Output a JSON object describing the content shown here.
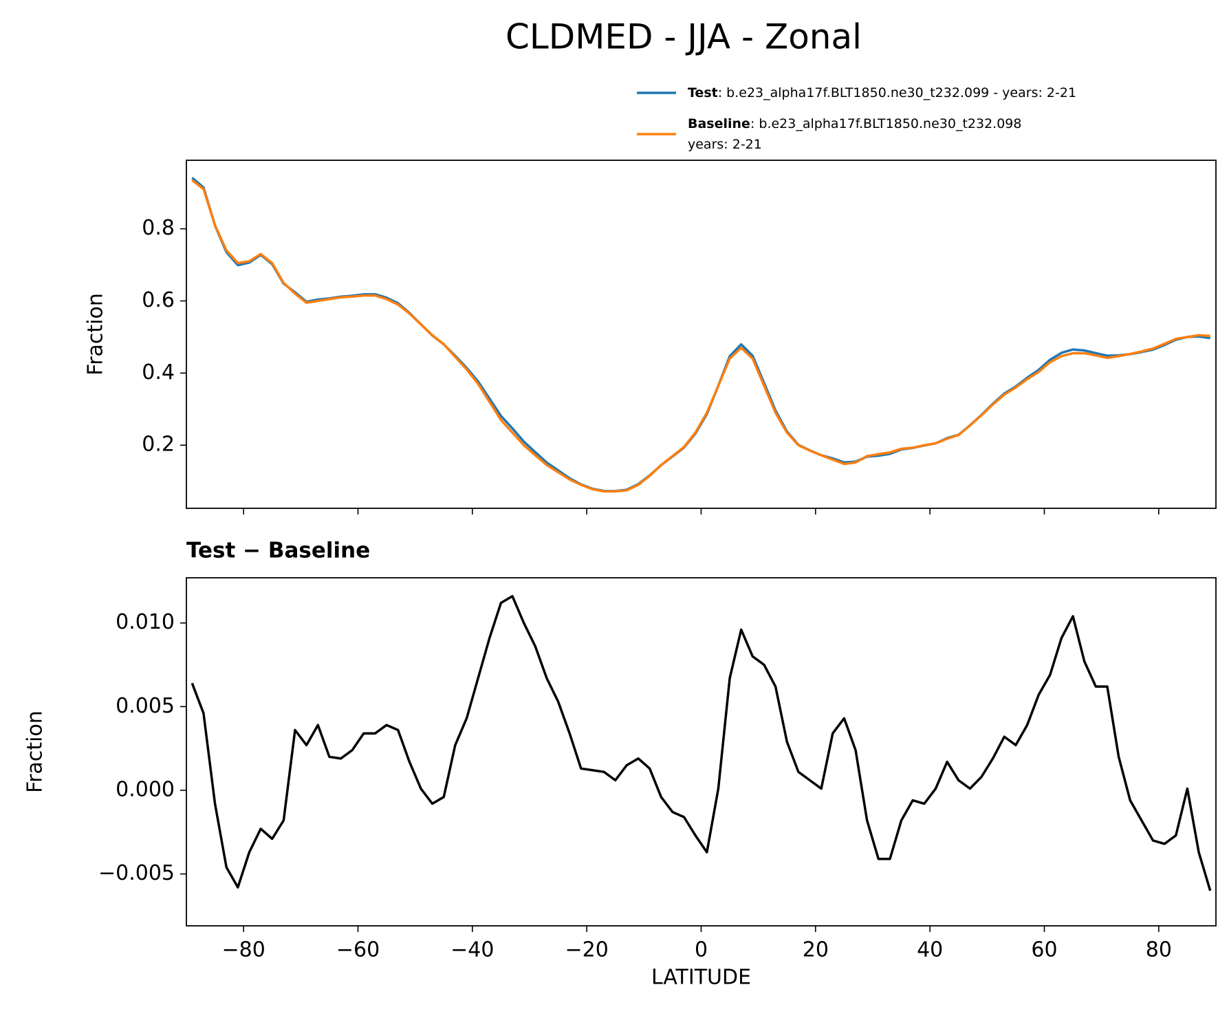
{
  "chart_data": [
    {
      "type": "line",
      "title": "CLDMED - JJA - Zonal",
      "ylabel": "Fraction",
      "x": [
        -89,
        -87,
        -85,
        -83,
        -81,
        -79,
        -77,
        -75,
        -73,
        -71,
        -69,
        -67,
        -65,
        -63,
        -61,
        -59,
        -57,
        -55,
        -53,
        -51,
        -49,
        -47,
        -45,
        -43,
        -41,
        -39,
        -37,
        -35,
        -33,
        -31,
        -29,
        -27,
        -25,
        -23,
        -21,
        -19,
        -17,
        -15,
        -13,
        -11,
        -9,
        -7,
        -5,
        -3,
        -1,
        1,
        3,
        5,
        7,
        9,
        11,
        13,
        15,
        17,
        19,
        21,
        23,
        25,
        27,
        29,
        31,
        33,
        35,
        37,
        39,
        41,
        43,
        45,
        47,
        49,
        51,
        53,
        55,
        57,
        59,
        61,
        63,
        65,
        67,
        69,
        71,
        73,
        75,
        77,
        79,
        81,
        83,
        85,
        87,
        89
      ],
      "series": [
        {
          "name": "Test",
          "case": [
            ": b.e23_alpha17f.BLT1850.ne30_t232.099 - years: 2-21"
          ],
          "color": "#1f77b4",
          "values": [
            0.9414,
            0.9146,
            0.8092,
            0.7354,
            0.6992,
            0.7063,
            0.7277,
            0.7021,
            0.6482,
            0.6236,
            0.5977,
            0.6039,
            0.607,
            0.6119,
            0.6144,
            0.6184,
            0.6184,
            0.6089,
            0.5936,
            0.5667,
            0.5351,
            0.5042,
            0.4796,
            0.4477,
            0.4143,
            0.3767,
            0.3291,
            0.2812,
            0.2466,
            0.21,
            0.1806,
            0.1517,
            0.1303,
            0.1084,
            0.0913,
            0.0792,
            0.0731,
            0.0726,
            0.0765,
            0.0919,
            0.1163,
            0.1446,
            0.1687,
            0.1934,
            0.2323,
            0.2863,
            0.3651,
            0.4467,
            0.4796,
            0.448,
            0.3725,
            0.2962,
            0.2379,
            0.2011,
            0.1856,
            0.1721,
            0.1634,
            0.1523,
            0.1544,
            0.1682,
            0.1709,
            0.1759,
            0.1882,
            0.1924,
            0.1992,
            0.2051,
            0.2197,
            0.2286,
            0.2551,
            0.2838,
            0.3149,
            0.3432,
            0.3627,
            0.3869,
            0.4087,
            0.4369,
            0.4561,
            0.4654,
            0.4627,
            0.4552,
            0.4482,
            0.449,
            0.4524,
            0.4582,
            0.465,
            0.4778,
            0.4923,
            0.5001,
            0.5013,
            0.497
          ]
        },
        {
          "name": "Baseline",
          "case": [
            ": b.e23_alpha17f.BLT1850.ne30_t232.098",
            "years: 2-21"
          ],
          "color": "#ff7f0e",
          "values": [
            0.935,
            0.91,
            0.81,
            0.74,
            0.705,
            0.71,
            0.73,
            0.705,
            0.65,
            0.62,
            0.595,
            0.6,
            0.605,
            0.61,
            0.612,
            0.615,
            0.615,
            0.605,
            0.59,
            0.565,
            0.535,
            0.505,
            0.48,
            0.445,
            0.41,
            0.37,
            0.32,
            0.27,
            0.235,
            0.2,
            0.172,
            0.145,
            0.125,
            0.105,
            0.09,
            0.078,
            0.072,
            0.072,
            0.075,
            0.09,
            0.115,
            0.145,
            0.17,
            0.195,
            0.235,
            0.29,
            0.365,
            0.44,
            0.47,
            0.44,
            0.365,
            0.29,
            0.235,
            0.2,
            0.185,
            0.172,
            0.16,
            0.148,
            0.152,
            0.17,
            0.175,
            0.18,
            0.19,
            0.193,
            0.2,
            0.205,
            0.218,
            0.228,
            0.255,
            0.283,
            0.313,
            0.34,
            0.36,
            0.383,
            0.403,
            0.43,
            0.447,
            0.455,
            0.455,
            0.449,
            0.442,
            0.447,
            0.453,
            0.46,
            0.468,
            0.481,
            0.495,
            0.5,
            0.505,
            0.503
          ]
        }
      ],
      "xlim": [
        -90,
        90
      ],
      "ylim": [
        0.025,
        0.99
      ],
      "xticks": [
        -80,
        -60,
        -40,
        -20,
        0,
        20,
        40,
        60,
        80
      ],
      "xtick_labels": false,
      "yticks": [
        0.2,
        0.4,
        0.6,
        0.8
      ]
    },
    {
      "type": "line",
      "subtitle": "Test − Baseline",
      "ylabel": "Fraction",
      "xlabel": "LATITUDE",
      "color": "#000000",
      "x": [
        -89,
        -87,
        -85,
        -83,
        -81,
        -79,
        -77,
        -75,
        -73,
        -71,
        -69,
        -67,
        -65,
        -63,
        -61,
        -59,
        -57,
        -55,
        -53,
        -51,
        -49,
        -47,
        -45,
        -43,
        -41,
        -39,
        -37,
        -35,
        -33,
        -31,
        -29,
        -27,
        -25,
        -23,
        -21,
        -19,
        -17,
        -15,
        -13,
        -11,
        -9,
        -7,
        -5,
        -3,
        -1,
        1,
        3,
        5,
        7,
        9,
        11,
        13,
        15,
        17,
        19,
        21,
        23,
        25,
        27,
        29,
        31,
        33,
        35,
        37,
        39,
        41,
        43,
        45,
        47,
        49,
        51,
        53,
        55,
        57,
        59,
        61,
        63,
        65,
        67,
        69,
        71,
        73,
        75,
        77,
        79,
        81,
        83,
        85,
        87,
        89
      ],
      "values": [
        0.0064,
        0.0046,
        -0.0008,
        -0.0046,
        -0.0058,
        -0.0037,
        -0.0023,
        -0.0029,
        -0.0018,
        0.0036,
        0.0027,
        0.0039,
        0.002,
        0.0019,
        0.0024,
        0.0034,
        0.0034,
        0.0039,
        0.0036,
        0.0017,
        0.0001,
        -0.0008,
        -0.0004,
        0.0027,
        0.0043,
        0.0067,
        0.0091,
        0.0112,
        0.0116,
        0.01,
        0.0086,
        0.0067,
        0.0053,
        0.0034,
        0.0013,
        0.0012,
        0.0011,
        0.0006,
        0.0015,
        0.0019,
        0.0013,
        -0.0004,
        -0.0013,
        -0.0016,
        -0.0027,
        -0.0037,
        0.0001,
        0.0067,
        0.0096,
        0.008,
        0.0075,
        0.0062,
        0.0029,
        0.0011,
        0.0006,
        0.0001,
        0.0034,
        0.0043,
        0.0024,
        -0.0018,
        -0.0041,
        -0.0041,
        -0.0018,
        -0.0006,
        -0.0008,
        0.0001,
        0.0017,
        0.0006,
        0.0001,
        0.0008,
        0.0019,
        0.0032,
        0.0027,
        0.0039,
        0.0057,
        0.0069,
        0.0091,
        0.0104,
        0.0077,
        0.0062,
        0.0062,
        0.002,
        -0.0006,
        -0.0018,
        -0.003,
        -0.0032,
        -0.0027,
        0.0001,
        -0.0037,
        -0.006
      ],
      "xlim": [
        -90,
        90
      ],
      "ylim": [
        -0.0081,
        0.0127
      ],
      "xticks": [
        {
          "value": -80,
          "label": "−80"
        },
        {
          "value": -60,
          "label": "−60"
        },
        {
          "value": -40,
          "label": "−40"
        },
        {
          "value": -20,
          "label": "−20"
        },
        0,
        20,
        40,
        60,
        80
      ],
      "yticks": [
        {
          "value": 0.01,
          "label": "0.010"
        },
        {
          "value": 0.005,
          "label": "0.005"
        },
        {
          "value": 0,
          "label": "0.000"
        },
        {
          "value": -0.005,
          "label": "−0.005"
        }
      ]
    }
  ]
}
